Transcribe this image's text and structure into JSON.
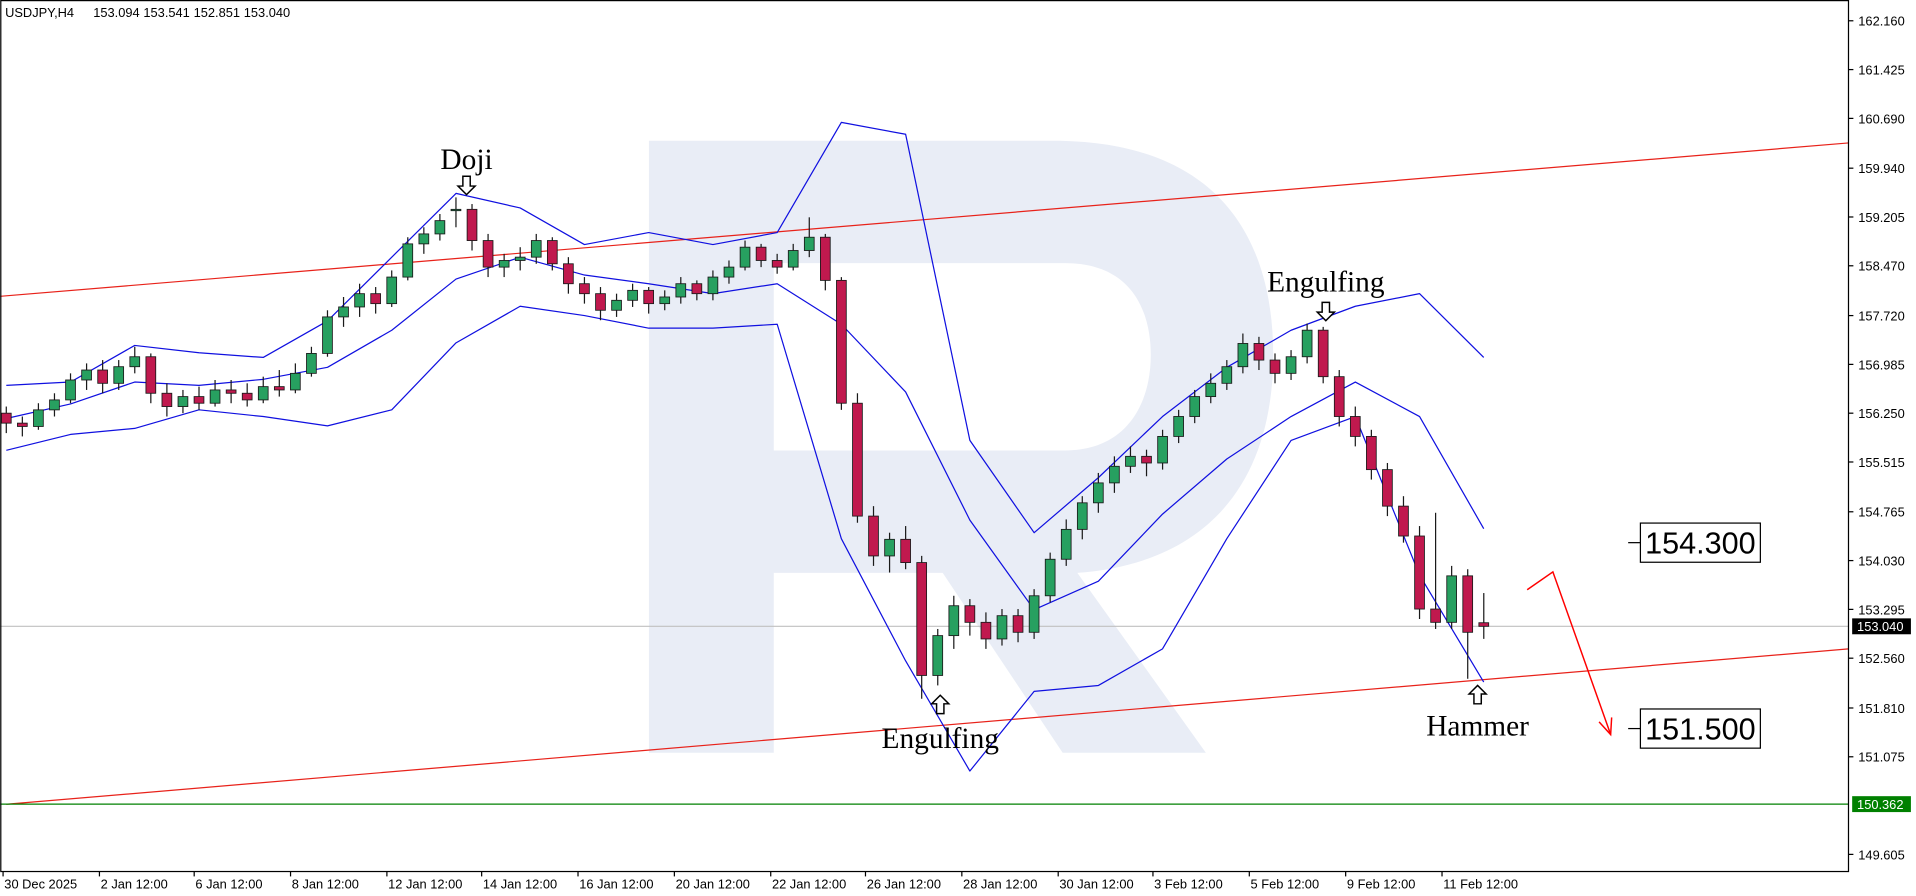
{
  "chart_data": {
    "type": "candlestick",
    "title": "USDJPY,H4",
    "header_values": [
      "153.094",
      "153.541",
      "152.851",
      "153.040"
    ],
    "up_color": "#27a060",
    "down_color": "#c0194e",
    "candles": [
      [
        156.25,
        156.35,
        155.95,
        156.1
      ],
      [
        156.1,
        156.2,
        155.9,
        156.05
      ],
      [
        156.05,
        156.4,
        156.0,
        156.3
      ],
      [
        156.3,
        156.55,
        156.2,
        156.45
      ],
      [
        156.45,
        156.85,
        156.4,
        156.75
      ],
      [
        156.75,
        157.0,
        156.6,
        156.9
      ],
      [
        156.9,
        157.05,
        156.55,
        156.7
      ],
      [
        156.7,
        157.05,
        156.6,
        156.95
      ],
      [
        156.95,
        157.25,
        156.85,
        157.1
      ],
      [
        157.1,
        157.15,
        156.4,
        156.55
      ],
      [
        156.55,
        156.7,
        156.2,
        156.35
      ],
      [
        156.35,
        156.6,
        156.25,
        156.5
      ],
      [
        156.5,
        156.65,
        156.3,
        156.4
      ],
      [
        156.4,
        156.75,
        156.35,
        156.6
      ],
      [
        156.6,
        156.75,
        156.4,
        156.55
      ],
      [
        156.55,
        156.7,
        156.35,
        156.45
      ],
      [
        156.45,
        156.8,
        156.4,
        156.65
      ],
      [
        156.65,
        156.9,
        156.5,
        156.6
      ],
      [
        156.6,
        157.0,
        156.55,
        156.85
      ],
      [
        156.85,
        157.25,
        156.8,
        157.15
      ],
      [
        157.15,
        157.8,
        157.1,
        157.7
      ],
      [
        157.7,
        158.0,
        157.55,
        157.85
      ],
      [
        157.85,
        158.2,
        157.7,
        158.05
      ],
      [
        158.05,
        158.15,
        157.75,
        157.9
      ],
      [
        157.9,
        158.4,
        157.85,
        158.3
      ],
      [
        158.3,
        158.9,
        158.25,
        158.8
      ],
      [
        158.8,
        159.05,
        158.65,
        158.95
      ],
      [
        158.95,
        159.25,
        158.85,
        159.15
      ],
      [
        159.3,
        159.5,
        159.05,
        159.32
      ],
      [
        159.32,
        159.4,
        158.7,
        158.85
      ],
      [
        158.85,
        158.95,
        158.3,
        158.45
      ],
      [
        158.45,
        158.65,
        158.3,
        158.55
      ],
      [
        158.55,
        158.75,
        158.4,
        158.6
      ],
      [
        158.6,
        158.95,
        158.5,
        158.85
      ],
      [
        158.85,
        158.9,
        158.4,
        158.5
      ],
      [
        158.5,
        158.6,
        158.05,
        158.2
      ],
      [
        158.2,
        158.3,
        157.9,
        158.05
      ],
      [
        158.05,
        158.15,
        157.65,
        157.8
      ],
      [
        157.8,
        158.05,
        157.7,
        157.95
      ],
      [
        157.95,
        158.2,
        157.85,
        158.1
      ],
      [
        158.1,
        158.15,
        157.75,
        157.9
      ],
      [
        157.9,
        158.1,
        157.8,
        158.0
      ],
      [
        158.0,
        158.3,
        157.9,
        158.2
      ],
      [
        158.2,
        158.25,
        157.95,
        158.05
      ],
      [
        158.05,
        158.4,
        157.95,
        158.3
      ],
      [
        158.3,
        158.55,
        158.2,
        158.45
      ],
      [
        158.45,
        158.85,
        158.4,
        158.75
      ],
      [
        158.75,
        158.8,
        158.45,
        158.55
      ],
      [
        158.55,
        158.65,
        158.35,
        158.45
      ],
      [
        158.45,
        158.8,
        158.4,
        158.7
      ],
      [
        158.7,
        159.2,
        158.6,
        158.9
      ],
      [
        158.9,
        158.95,
        158.1,
        158.25
      ],
      [
        158.25,
        158.3,
        156.3,
        156.4
      ],
      [
        156.4,
        156.55,
        154.6,
        154.7
      ],
      [
        154.7,
        154.85,
        153.95,
        154.1
      ],
      [
        154.1,
        154.45,
        153.85,
        154.35
      ],
      [
        154.35,
        154.55,
        153.9,
        154.0
      ],
      [
        154.0,
        154.1,
        151.95,
        152.3
      ],
      [
        152.3,
        153.0,
        152.15,
        152.9
      ],
      [
        152.9,
        153.5,
        152.7,
        153.35
      ],
      [
        153.35,
        153.45,
        152.9,
        153.1
      ],
      [
        153.1,
        153.25,
        152.7,
        152.85
      ],
      [
        152.85,
        153.3,
        152.75,
        153.2
      ],
      [
        153.2,
        153.3,
        152.8,
        152.95
      ],
      [
        152.95,
        153.6,
        152.85,
        153.5
      ],
      [
        153.5,
        154.15,
        153.4,
        154.05
      ],
      [
        154.05,
        154.65,
        153.95,
        154.5
      ],
      [
        154.5,
        155.0,
        154.35,
        154.9
      ],
      [
        154.9,
        155.35,
        154.75,
        155.2
      ],
      [
        155.2,
        155.6,
        155.05,
        155.45
      ],
      [
        155.45,
        155.75,
        155.35,
        155.6
      ],
      [
        155.6,
        155.7,
        155.3,
        155.5
      ],
      [
        155.5,
        156.0,
        155.4,
        155.9
      ],
      [
        155.9,
        156.3,
        155.8,
        156.2
      ],
      [
        156.2,
        156.6,
        156.1,
        156.5
      ],
      [
        156.5,
        156.85,
        156.4,
        156.7
      ],
      [
        156.7,
        157.05,
        156.6,
        156.95
      ],
      [
        156.95,
        157.45,
        156.85,
        157.3
      ],
      [
        157.3,
        157.4,
        156.9,
        157.05
      ],
      [
        157.05,
        157.15,
        156.7,
        156.85
      ],
      [
        156.85,
        157.2,
        156.75,
        157.1
      ],
      [
        157.1,
        157.6,
        157.0,
        157.5
      ],
      [
        157.5,
        157.55,
        156.7,
        156.8
      ],
      [
        156.8,
        156.9,
        156.05,
        156.2
      ],
      [
        156.2,
        156.35,
        155.75,
        155.9
      ],
      [
        155.9,
        156.0,
        155.25,
        155.4
      ],
      [
        155.4,
        155.5,
        154.7,
        154.85
      ],
      [
        154.85,
        155.0,
        154.3,
        154.4
      ],
      [
        154.4,
        154.55,
        153.15,
        153.3
      ],
      [
        153.3,
        154.75,
        153.0,
        153.1
      ],
      [
        153.1,
        153.95,
        153.0,
        153.8
      ],
      [
        153.8,
        153.9,
        152.25,
        152.95
      ],
      [
        153.094,
        153.541,
        152.851,
        153.04
      ]
    ],
    "xlim": [
      -0.38,
      114.71
    ],
    "ylim": [
      149.347,
      162.473
    ],
    "xticks": [
      {
        "value": -0.2,
        "label": "30 Dec 2025"
      },
      {
        "value": 5.8,
        "label": "2 Jan 12:00"
      },
      {
        "value": 11.7,
        "label": "6 Jan 12:00"
      },
      {
        "value": 17.7,
        "label": "8 Jan 12:00"
      },
      {
        "value": 23.7,
        "label": "12 Jan 12:00"
      },
      {
        "value": 29.6,
        "label": "14 Jan 12:00"
      },
      {
        "value": 35.6,
        "label": "16 Jan 12:00"
      },
      {
        "value": 41.6,
        "label": "20 Jan 12:00"
      },
      {
        "value": 47.6,
        "label": "22 Jan 12:00"
      },
      {
        "value": 53.5,
        "label": "26 Jan 12:00"
      },
      {
        "value": 59.5,
        "label": "28 Jan 12:00"
      },
      {
        "value": 65.5,
        "label": "30 Jan 12:00"
      },
      {
        "value": 71.4,
        "label": "3 Feb 12:00"
      },
      {
        "value": 77.4,
        "label": "5 Feb 12:00"
      },
      {
        "value": 83.4,
        "label": "9 Feb 12:00"
      },
      {
        "value": 89.4,
        "label": "11 Feb 12:00"
      }
    ],
    "yticks": [
      {
        "value": 162.16,
        "label": "162.160"
      },
      161.425,
      {
        "value": 160.69,
        "label": "160.690"
      },
      {
        "value": 159.94,
        "label": "159.940"
      },
      159.205,
      {
        "value": 158.47,
        "label": "158.470"
      },
      {
        "value": 157.72,
        "label": "157.720"
      },
      156.985,
      {
        "value": 156.25,
        "label": "156.250"
      },
      155.515,
      154.765,
      {
        "value": 154.03,
        "label": "154.030"
      },
      153.295,
      {
        "value": 152.56,
        "label": "152.560"
      },
      {
        "value": 151.81,
        "label": "151.810"
      },
      151.075,
      149.605
    ],
    "bollinger": {
      "color": "#1010e0",
      "x": [
        0,
        4,
        8,
        12,
        16,
        20,
        24,
        28,
        32,
        36,
        40,
        44,
        48,
        52,
        56,
        60,
        64,
        68,
        72,
        76,
        80,
        84,
        88,
        92
      ],
      "upper": [
        156.67,
        156.72,
        157.27,
        157.16,
        157.09,
        157.64,
        158.6,
        159.56,
        159.34,
        158.79,
        158.97,
        158.79,
        158.97,
        160.63,
        160.45,
        155.84,
        154.45,
        155.28,
        156.2,
        156.94,
        157.5,
        157.86,
        158.05,
        157.09
      ],
      "middle": [
        156.17,
        156.39,
        156.72,
        156.67,
        156.76,
        156.94,
        157.5,
        158.27,
        158.6,
        158.33,
        158.2,
        158.05,
        158.2,
        157.59,
        156.57,
        154.64,
        153.29,
        153.72,
        154.73,
        155.56,
        156.2,
        156.72,
        156.2,
        154.51
      ],
      "lower": [
        155.69,
        155.93,
        156.02,
        156.3,
        156.2,
        156.06,
        156.3,
        157.31,
        157.86,
        157.72,
        157.53,
        157.53,
        157.59,
        154.36,
        152.52,
        150.86,
        152.06,
        152.15,
        152.7,
        154.36,
        155.84,
        156.2,
        153.81,
        152.2
      ]
    },
    "trendlines": {
      "color": "#e8221a",
      "lines": [
        {
          "x": [
            -0.38,
            114.71
          ],
          "values": [
            158.01,
            160.32
          ]
        },
        {
          "x": [
            0,
            114.71
          ],
          "values": [
            150.36,
            152.7
          ]
        }
      ]
    },
    "forecast": {
      "color": "#ff0000",
      "x": [
        94.7,
        96.3,
        99.9
      ],
      "values": [
        153.59,
        153.86,
        151.41
      ]
    },
    "price_lines": [
      {
        "value": 153.04,
        "label": "153.040",
        "color": "#c0c0c0",
        "label_color": "#000000"
      },
      {
        "value": 150.362,
        "label": "150.362",
        "color": "#008000",
        "label_color": "#008000"
      }
    ],
    "targets": [
      {
        "value": 154.3,
        "label": "154.300"
      },
      {
        "value": 151.5,
        "label": "151.500"
      }
    ],
    "patterns": [
      "Doji",
      "Engulfing",
      "Engulfing",
      "Hammer"
    ]
  }
}
